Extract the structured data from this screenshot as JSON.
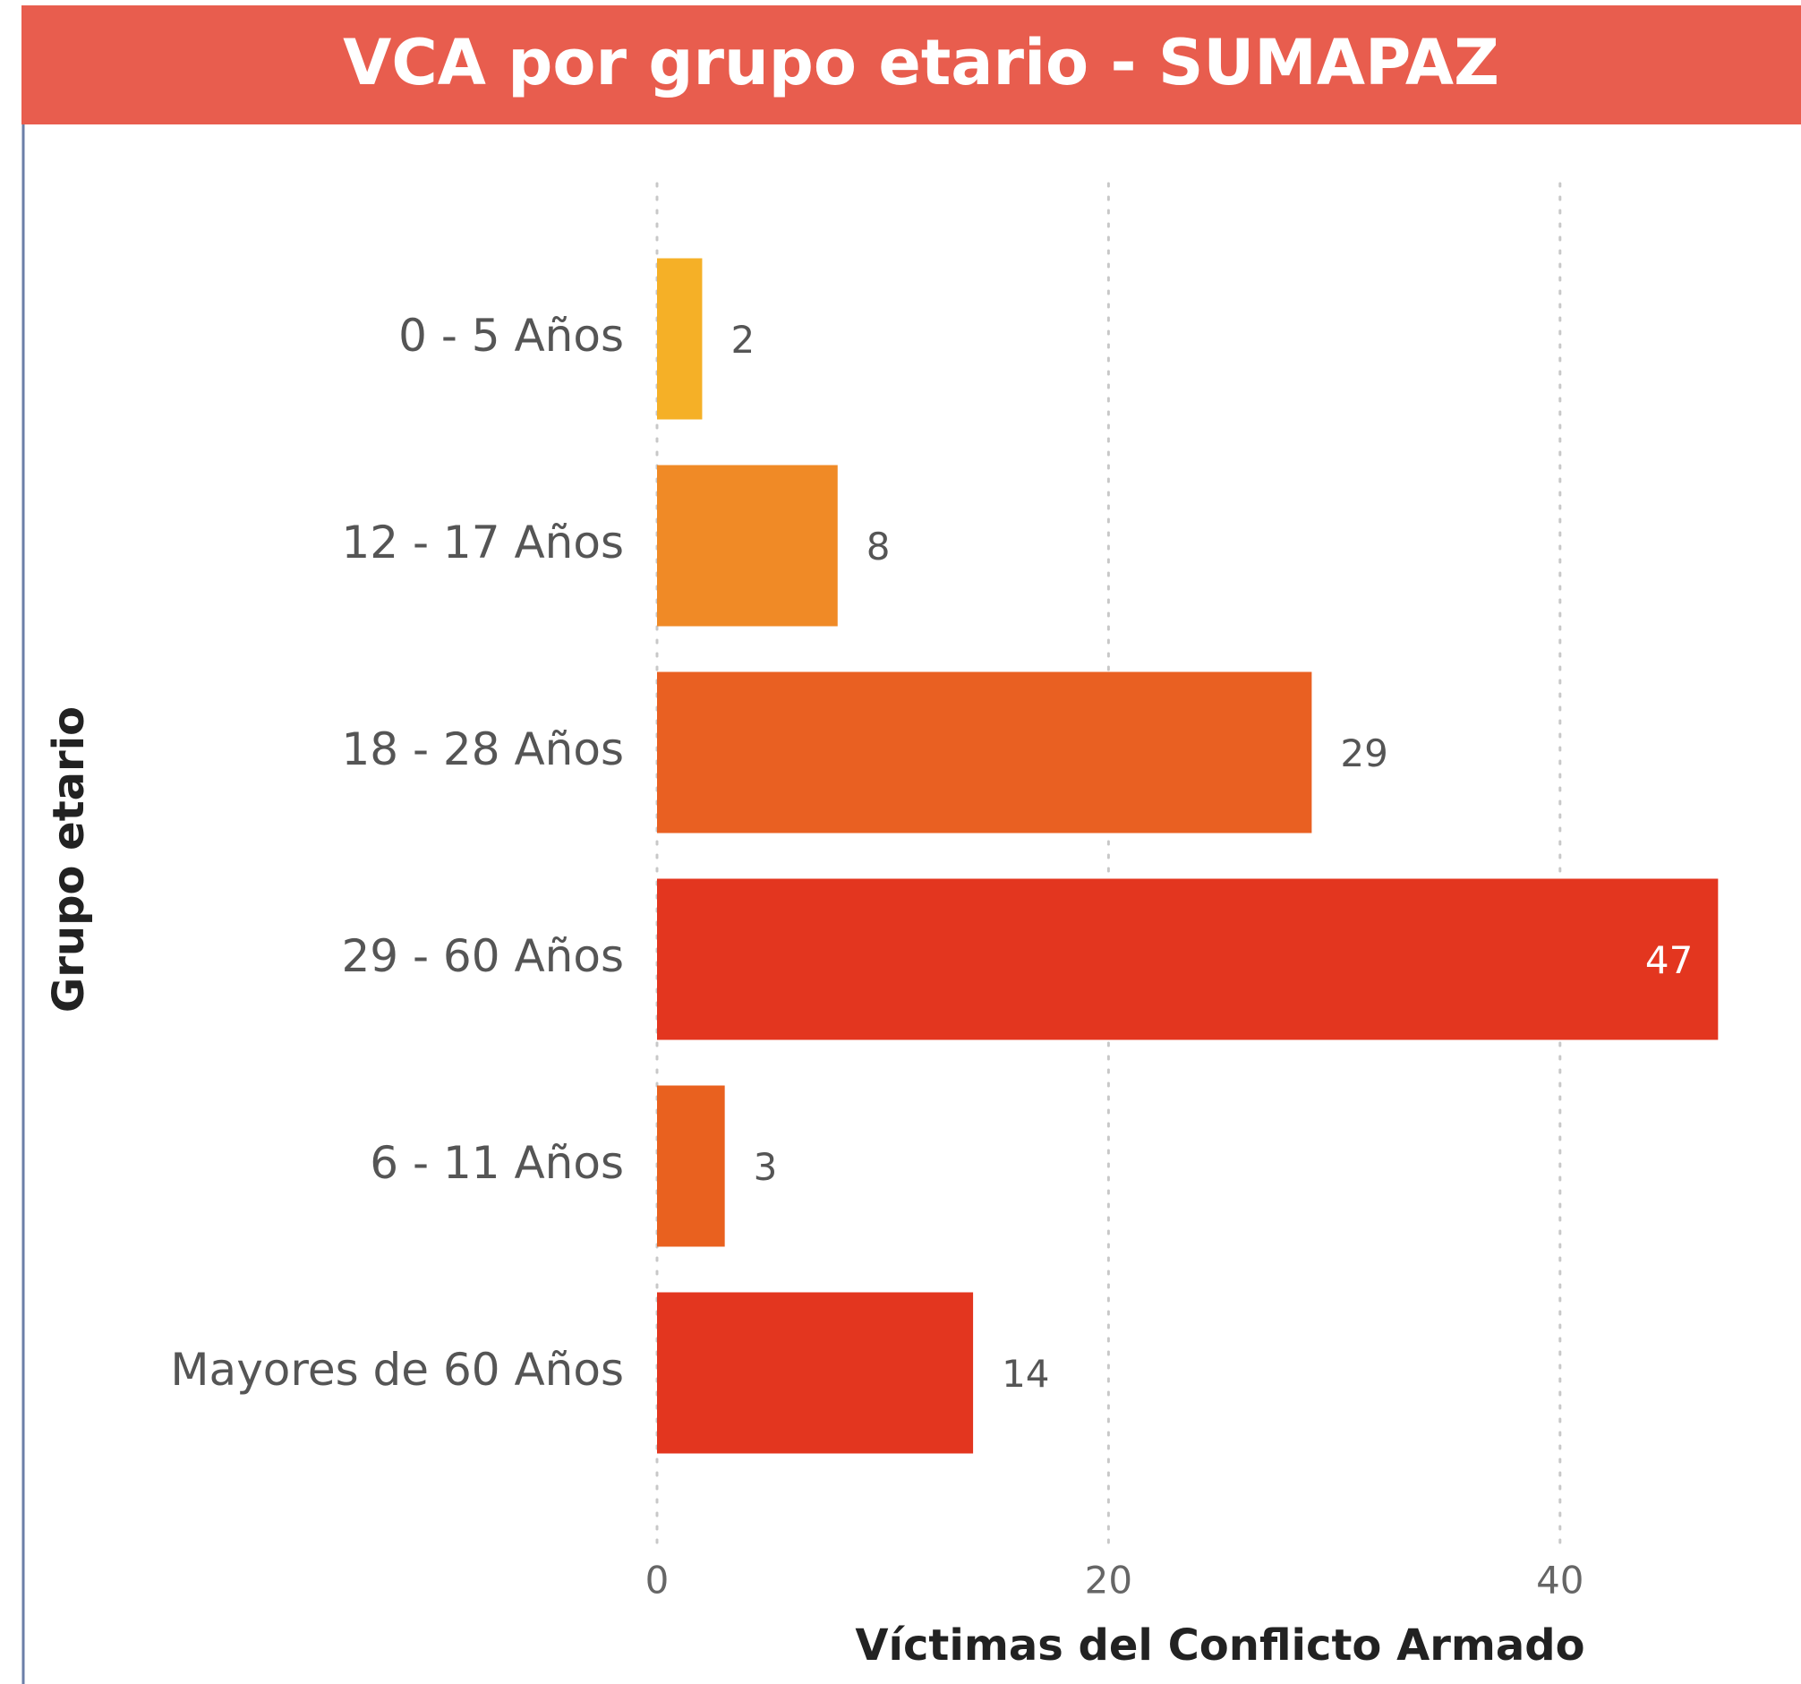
{
  "chart_data": {
    "type": "bar",
    "orientation": "horizontal",
    "title": "VCA por grupo etario - SUMAPAZ",
    "categories": [
      "0 - 5 Años",
      "12 - 17 Años",
      "18 - 28 Años",
      "29 - 60 Años",
      "6 - 11 Años",
      "Mayores de 60 Años"
    ],
    "values": [
      2,
      8,
      29,
      47,
      3,
      14
    ],
    "colors": [
      "#f5b027",
      "#f08a26",
      "#e96022",
      "#e3361f",
      "#e9611f",
      "#e3361f"
    ],
    "xlim": [
      0,
      50
    ],
    "xticks": [
      0,
      20,
      40
    ],
    "x_label": "Víctimas del Conflicto Armado",
    "y_label": "Grupo etario",
    "grid": true
  }
}
